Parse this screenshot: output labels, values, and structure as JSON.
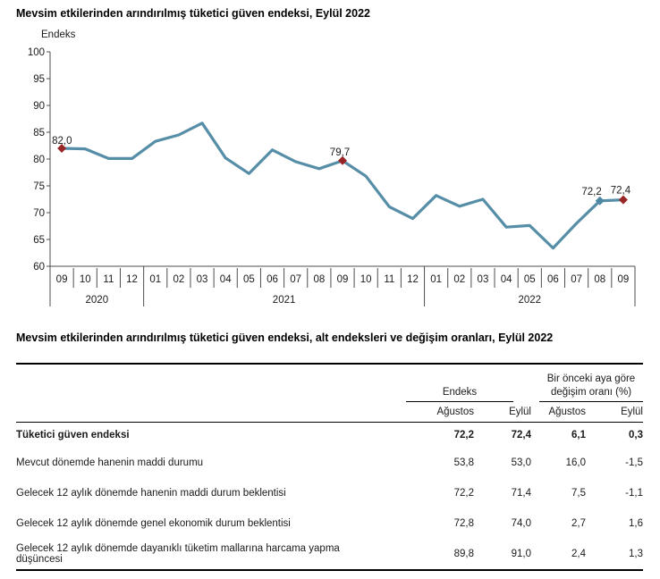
{
  "chart": {
    "title": "Mevsim etkilerinden arındırılmış tüketici güven endeksi, Eylül 2022",
    "y_axis_label": "Endeks"
  },
  "chart_data": {
    "type": "line",
    "title": "Mevsim etkilerinden arındırılmış tüketici güven endeksi, Eylül 2022",
    "ylabel": "Endeks",
    "ylim": [
      60,
      100
    ],
    "ytick_step": 5,
    "grid": false,
    "legend": "none",
    "groups": [
      {
        "year": "2020",
        "months": [
          "09",
          "10",
          "11",
          "12"
        ]
      },
      {
        "year": "2021",
        "months": [
          "01",
          "02",
          "03",
          "04",
          "05",
          "06",
          "07",
          "08",
          "09",
          "10",
          "11",
          "12"
        ]
      },
      {
        "year": "2022",
        "months": [
          "01",
          "02",
          "03",
          "04",
          "05",
          "06",
          "07",
          "08",
          "09"
        ]
      }
    ],
    "values": [
      82.0,
      81.9,
      80.1,
      80.1,
      83.3,
      84.5,
      86.7,
      80.2,
      77.3,
      81.7,
      79.5,
      78.2,
      79.7,
      76.8,
      71.1,
      68.9,
      73.2,
      71.2,
      72.5,
      67.3,
      67.6,
      63.4,
      68.0,
      72.2,
      72.4
    ],
    "annotations": [
      {
        "index": 0,
        "label": "82,0",
        "marker": "red",
        "placement": "left-of-point"
      },
      {
        "index": 12,
        "label": "79,7",
        "marker": "red",
        "placement": "above"
      },
      {
        "index": 23,
        "label": "72,2",
        "marker": "line",
        "placement": "above-left"
      },
      {
        "index": 24,
        "label": "72,4",
        "marker": "red",
        "placement": "above-center"
      }
    ],
    "line_color": "#4d87a2",
    "marker_red_color": "#992626"
  },
  "table": {
    "title": "Mevsim etkilerinden arındırılmış tüketici güven endeksi, alt endeksleri ve değişim oranları, Eylül 2022",
    "col_groups": [
      {
        "label": "Endeks"
      },
      {
        "label": "Bir önceki aya göre değişim oranı (%)"
      }
    ],
    "sub_headers": [
      "Ağustos",
      "Eylül",
      "Ağustos",
      "Eylül"
    ],
    "rows": [
      {
        "label": "Tüketici güven endeksi",
        "values": [
          "72,2",
          "72,4",
          "6,1",
          "0,3"
        ],
        "bold": true
      },
      {
        "label": "Mevcut dönemde hanenin maddi durumu",
        "values": [
          "53,8",
          "53,0",
          "16,0",
          "-1,5"
        ],
        "bold": false
      },
      {
        "label": "Gelecek 12 aylık dönemde hanenin maddi durum beklentisi",
        "values": [
          "72,2",
          "71,4",
          "7,5",
          "-1,1"
        ],
        "bold": false
      },
      {
        "label": "Gelecek 12 aylık dönemde genel ekonomik durum beklentisi",
        "values": [
          "72,8",
          "74,0",
          "2,7",
          "1,6"
        ],
        "bold": false
      },
      {
        "label": "Gelecek 12 aylık dönemde dayanıklı tüketim mallarına harcama yapma düşüncesi",
        "values": [
          "89,8",
          "91,0",
          "2,4",
          "1,3"
        ],
        "bold": false
      }
    ]
  }
}
